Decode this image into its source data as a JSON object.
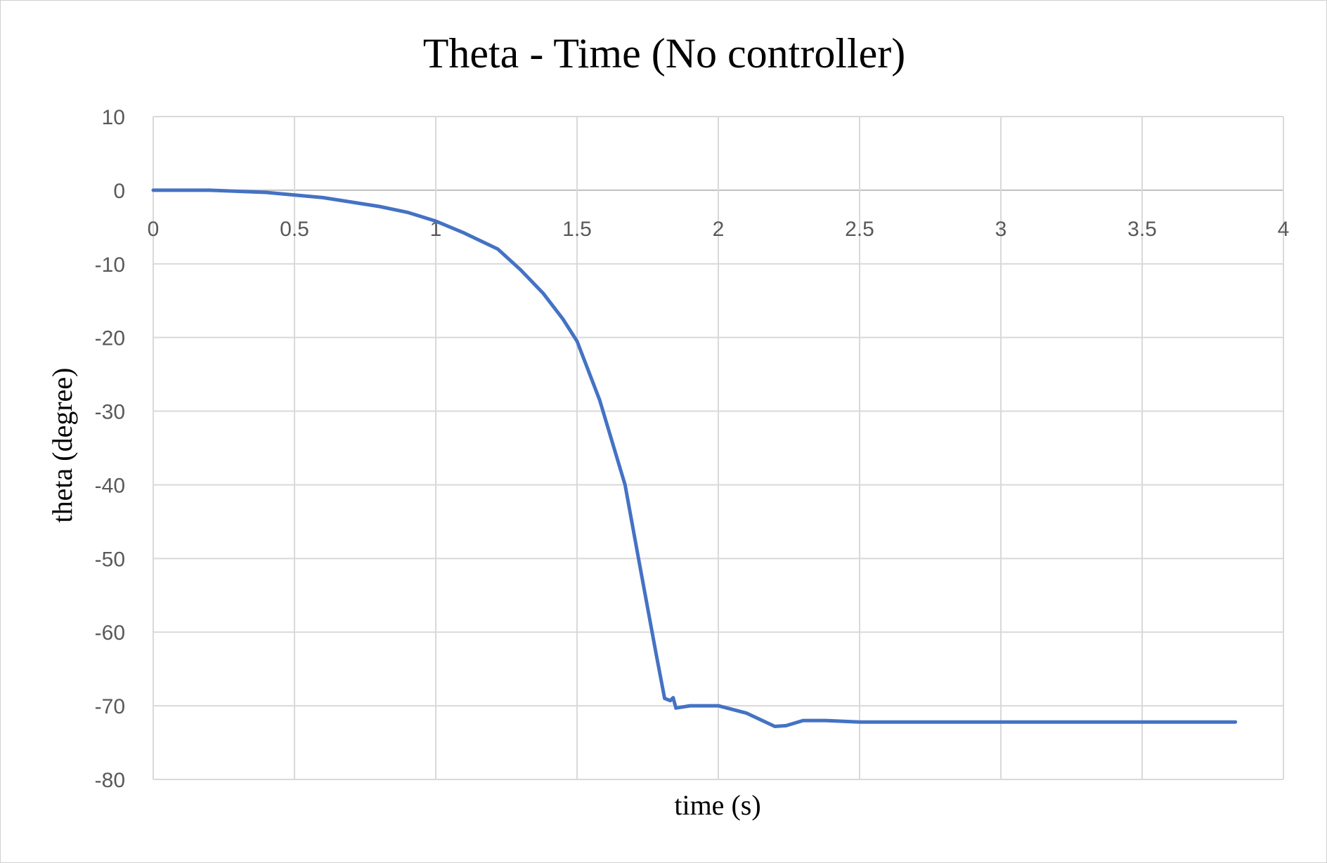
{
  "chart_data": {
    "type": "line",
    "title": "Theta - Time (No controller)",
    "xlabel": "time (s)",
    "ylabel": "theta (degree)",
    "xlim": [
      0,
      4
    ],
    "ylim": [
      -80,
      10
    ],
    "x_ticks": [
      "0",
      "0.5",
      "1",
      "1.5",
      "2",
      "2.5",
      "3",
      "3.5",
      "4"
    ],
    "y_ticks": [
      "10",
      "0",
      "-10",
      "-20",
      "-30",
      "-40",
      "-50",
      "-60",
      "-70",
      "-80"
    ],
    "grid": true,
    "legend": "none",
    "series_color": "#4472c4",
    "series": [
      {
        "x": [
          0,
          0.2,
          0.4,
          0.6,
          0.8,
          0.9,
          1.0,
          1.1,
          1.22,
          1.3,
          1.38,
          1.45,
          1.5,
          1.58,
          1.67,
          1.72,
          1.78,
          1.81,
          1.83,
          1.84,
          1.85,
          1.9,
          2.0,
          2.1,
          2.2,
          2.24,
          2.3,
          2.38,
          2.5,
          2.7,
          3.0,
          3.5,
          3.83
        ],
        "y": [
          0,
          0,
          -0.3,
          -1.0,
          -2.2,
          -3.0,
          -4.2,
          -5.8,
          -8.0,
          -10.8,
          -14.0,
          -17.5,
          -20.5,
          -28.5,
          -40.0,
          -50.5,
          -63.0,
          -69.0,
          -69.3,
          -68.9,
          -70.3,
          -70.0,
          -70.0,
          -71.0,
          -72.8,
          -72.7,
          -72.0,
          -72.0,
          -72.2,
          -72.2,
          -72.2,
          -72.2,
          -72.2
        ]
      }
    ]
  }
}
